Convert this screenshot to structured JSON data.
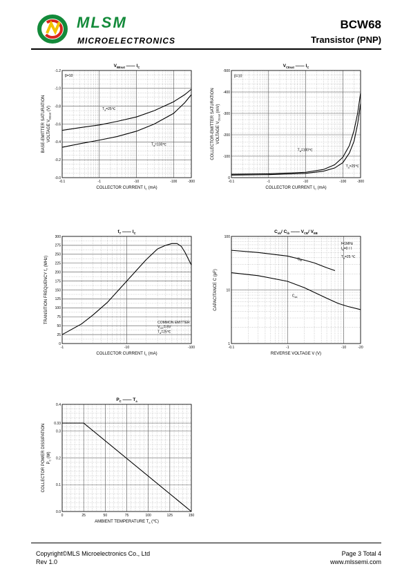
{
  "header": {
    "brand": "MLSM",
    "brand_sub": "MICROELECTRONICS",
    "part": "BCW68",
    "type": "Transistor  (PNP)"
  },
  "footer": {
    "copyright": "Copyright©MLS Microelectronics Co., Ltd",
    "rev": "Rev 1.0",
    "page": "Page 3 Total 4",
    "url": "www.mlssemi.com"
  },
  "colors": {
    "brand_green": "#138a3a",
    "logo_red": "#d9251d",
    "logo_yellow": "#f2c300"
  },
  "chart_data": [
    {
      "id": "vbe",
      "type": "line",
      "title_main": "V",
      "title_sub": "BEsat",
      "title_right": "I",
      "title_right_sub": "C",
      "xlabel": "COLLECTOR CURRENT   I",
      "xlabel_sub": "C",
      "xlabel_unit": "(mA)",
      "ylabel": "BASE-EMITTER SATURATION",
      "ylabel2": "VOLTAGE   V",
      "ylabel2_sub": "BEsat",
      "ylabel2_unit": "(V)",
      "x_log": true,
      "xlim": [
        0.1,
        300
      ],
      "ylim": [
        0,
        1.2
      ],
      "xticks": [
        {
          "v": 0.1,
          "t": "-0.1"
        },
        {
          "v": 1,
          "t": "-1"
        },
        {
          "v": 10,
          "t": "-10"
        },
        {
          "v": 100,
          "t": "-100"
        },
        {
          "v": 300,
          "t": "-300"
        }
      ],
      "yticks": [
        {
          "v": 0,
          "t": "-0.0"
        },
        {
          "v": 0.2,
          "t": "-0.2"
        },
        {
          "v": 0.4,
          "t": "-0.4"
        },
        {
          "v": 0.6,
          "t": "-0.6"
        },
        {
          "v": 0.8,
          "t": "-0.8"
        },
        {
          "v": 1.0,
          "t": "-1.0"
        },
        {
          "v": 1.2,
          "t": "-1.2"
        }
      ],
      "annotations": [
        {
          "text": "β=10",
          "x": 0.1,
          "y": 1.13,
          "dx": 4
        }
      ],
      "series": [
        {
          "label": "T",
          "label_sub": "a",
          "label_rest": "=25℃",
          "lx": 1.2,
          "ly": 0.76,
          "points": [
            [
              0.1,
              0.53
            ],
            [
              0.3,
              0.56
            ],
            [
              1,
              0.59
            ],
            [
              3,
              0.63
            ],
            [
              10,
              0.68
            ],
            [
              30,
              0.75
            ],
            [
              100,
              0.85
            ],
            [
              200,
              0.93
            ],
            [
              300,
              0.99
            ]
          ]
        },
        {
          "label": "T",
          "label_sub": "a",
          "label_rest": "=100℃",
          "lx": 25,
          "ly": 0.36,
          "points": [
            [
              0.1,
              0.34
            ],
            [
              0.3,
              0.38
            ],
            [
              1,
              0.42
            ],
            [
              3,
              0.46
            ],
            [
              10,
              0.52
            ],
            [
              30,
              0.6
            ],
            [
              100,
              0.72
            ],
            [
              200,
              0.84
            ],
            [
              300,
              0.93
            ]
          ]
        }
      ]
    },
    {
      "id": "vce",
      "type": "line",
      "title_main": "V",
      "title_sub": "CEsat",
      "title_right": "I",
      "title_right_sub": "C",
      "xlabel": "COLLECTOR CURRENT   I",
      "xlabel_sub": "C",
      "xlabel_unit": "(mA)",
      "ylabel": "COLLECTOR-EMITTER SATURATION",
      "ylabel2": "VOLTAGE   V",
      "ylabel2_sub": "CEsat",
      "ylabel2_unit": "(mV)",
      "x_log": true,
      "xlim": [
        0.1,
        300
      ],
      "ylim": [
        0,
        500
      ],
      "xticks": [
        {
          "v": 0.1,
          "t": "-0.1"
        },
        {
          "v": 1,
          "t": "-1"
        },
        {
          "v": 10,
          "t": "-10"
        },
        {
          "v": 100,
          "t": "-100"
        },
        {
          "v": 300,
          "t": "-300"
        }
      ],
      "yticks": [
        {
          "v": 0,
          "t": "0"
        },
        {
          "v": 100,
          "t": "-100"
        },
        {
          "v": 200,
          "t": "-200"
        },
        {
          "v": 300,
          "t": "-300"
        },
        {
          "v": 400,
          "t": "-400"
        },
        {
          "v": 500,
          "t": "-500"
        }
      ],
      "annotations": [
        {
          "text": "β=10",
          "x": 0.1,
          "y": 470,
          "dx": 4
        }
      ],
      "series": [
        {
          "label": "T",
          "label_sub": "a",
          "label_rest": "=100℃",
          "lx": 6,
          "ly": 125,
          "points": [
            [
              0.1,
              16
            ],
            [
              1,
              18
            ],
            [
              10,
              25
            ],
            [
              30,
              38
            ],
            [
              60,
              60
            ],
            [
              100,
              95
            ],
            [
              150,
              150
            ],
            [
              200,
              220
            ],
            [
              250,
              300
            ],
            [
              300,
              395
            ]
          ]
        },
        {
          "label": "T",
          "label_sub": "a",
          "label_rest": "=25℃",
          "lx": 120,
          "ly": 48,
          "points": [
            [
              0.1,
              12
            ],
            [
              1,
              14
            ],
            [
              10,
              20
            ],
            [
              30,
              30
            ],
            [
              60,
              45
            ],
            [
              100,
              70
            ],
            [
              150,
              115
            ],
            [
              200,
              170
            ],
            [
              250,
              250
            ],
            [
              300,
              345
            ]
          ]
        }
      ]
    },
    {
      "id": "ft",
      "type": "line",
      "title_main": "f",
      "title_sub": "T",
      "title_right": "I",
      "title_right_sub": "C",
      "xlabel": "COLLECTOR CURRENT   I",
      "xlabel_sub": "C",
      "xlabel_unit": "(mA)",
      "ylabel": "TRANSITION FREQUENCY   f",
      "ylabel_sub": "T",
      "ylabel_unit": "(MHz)",
      "x_log": true,
      "xlim": [
        1,
        100
      ],
      "ylim": [
        0,
        300
      ],
      "xticks": [
        {
          "v": 1,
          "t": "-1"
        },
        {
          "v": 10,
          "t": "-10"
        },
        {
          "v": 100,
          "t": "-100"
        }
      ],
      "yticks": [
        {
          "v": 0,
          "t": "0"
        },
        {
          "v": 25,
          "t": "25"
        },
        {
          "v": 50,
          "t": "50"
        },
        {
          "v": 75,
          "t": "75"
        },
        {
          "v": 100,
          "t": "100"
        },
        {
          "v": 125,
          "t": "125"
        },
        {
          "v": 150,
          "t": "150"
        },
        {
          "v": 175,
          "t": "175"
        },
        {
          "v": 200,
          "t": "200"
        },
        {
          "v": 225,
          "t": "225"
        },
        {
          "v": 250,
          "t": "250"
        },
        {
          "v": 275,
          "t": "275"
        },
        {
          "v": 300,
          "t": "300"
        }
      ],
      "annotations": [
        {
          "text": "COMMON EMITTER",
          "x": 30,
          "y": 56
        },
        {
          "text": "V",
          "sub": "CE",
          "rest": "=-5V",
          "x": 30,
          "y": 44
        },
        {
          "text": "T",
          "sub": "a",
          "rest": "=25℃",
          "x": 30,
          "y": 30
        }
      ],
      "series": [
        {
          "points": [
            [
              1,
              25
            ],
            [
              2,
              55
            ],
            [
              3,
              80
            ],
            [
              5,
              115
            ],
            [
              10,
              175
            ],
            [
              20,
              235
            ],
            [
              30,
              265
            ],
            [
              40,
              275
            ],
            [
              50,
              280
            ],
            [
              60,
              280
            ],
            [
              70,
              272
            ],
            [
              80,
              255
            ],
            [
              100,
              220
            ]
          ]
        }
      ]
    },
    {
      "id": "cap",
      "type": "line",
      "title_main": "C",
      "title_sub": "ob",
      "title_mid": "/ C",
      "title_mid_sub": "ib",
      "title_right": "V",
      "title_right_sub": "CB",
      "title_right2": "/ V",
      "title_right2_sub": "EB",
      "xlabel": "REVERSE  VOLTAGE   V   (V)",
      "ylabel": "CAPACITANCE   C   (pF)",
      "x_log": true,
      "y_log": true,
      "xlim": [
        0.1,
        20
      ],
      "ylim": [
        1,
        100
      ],
      "xticks": [
        {
          "v": 0.1,
          "t": "-0.1"
        },
        {
          "v": 1,
          "t": "-1"
        },
        {
          "v": 10,
          "t": "-10"
        },
        {
          "v": 20,
          "t": "-20"
        }
      ],
      "yticks": [
        {
          "v": 1,
          "t": "1"
        },
        {
          "v": 10,
          "t": "10"
        },
        {
          "v": 100,
          "t": "100"
        }
      ],
      "annotations": [
        {
          "text": "f=1MHz",
          "x": 9,
          "y": 70
        },
        {
          "text": "I",
          "sub": "E",
          "rest": "=0 / I",
          "x": 9,
          "y": 57
        },
        {
          "text": "T",
          "sub": "a",
          "rest": "=25 ℃",
          "x": 9,
          "y": 40
        }
      ],
      "series": [
        {
          "label": "C",
          "label_sub": "ib",
          "lx": 1.5,
          "ly": 36,
          "points": [
            [
              0.1,
              55
            ],
            [
              0.3,
              50
            ],
            [
              1,
              43
            ],
            [
              2,
              36
            ],
            [
              3,
              32
            ],
            [
              5,
              26
            ],
            [
              7,
              23
            ]
          ]
        },
        {
          "label": "C",
          "label_sub": "ob",
          "lx": 1.2,
          "ly": 7.4,
          "points": [
            [
              0.1,
              21
            ],
            [
              0.3,
              18.5
            ],
            [
              1,
              14.5
            ],
            [
              2,
              11
            ],
            [
              3,
              9
            ],
            [
              5,
              7
            ],
            [
              8,
              5.6
            ],
            [
              12,
              4.9
            ],
            [
              20,
              4.3
            ]
          ]
        }
      ]
    },
    {
      "id": "pc",
      "type": "line",
      "title_main": "P",
      "title_sub": "C",
      "title_right": "T",
      "title_right_sub": "a",
      "xlabel": "AMBIENT TEMPERATURE   T",
      "xlabel_sub": "a",
      "xlabel_unit": "(℃)",
      "ylabel": "COLLECTOR POWER DISSIPATION",
      "ylabel2": "P",
      "ylabel2_sub": "C",
      "ylabel2_unit": "(W)",
      "x_log": false,
      "xlim": [
        0,
        150
      ],
      "ylim": [
        0,
        0.4
      ],
      "xticks": [
        {
          "v": 0,
          "t": "0"
        },
        {
          "v": 25,
          "t": "25"
        },
        {
          "v": 50,
          "t": "50"
        },
        {
          "v": 75,
          "t": "75"
        },
        {
          "v": 100,
          "t": "100"
        },
        {
          "v": 125,
          "t": "125"
        },
        {
          "v": 150,
          "t": "150"
        }
      ],
      "yticks": [
        {
          "v": 0,
          "t": "0.0"
        },
        {
          "v": 0.1,
          "t": "0.1"
        },
        {
          "v": 0.2,
          "t": "0.2"
        },
        {
          "v": 0.3,
          "t": "0.3"
        },
        {
          "v": 0.33,
          "t": "0.33"
        },
        {
          "v": 0.4,
          "t": "0.4"
        }
      ],
      "series": [
        {
          "points": [
            [
              0,
              0.33
            ],
            [
              25,
              0.33
            ],
            [
              150,
              0
            ]
          ]
        }
      ]
    }
  ]
}
